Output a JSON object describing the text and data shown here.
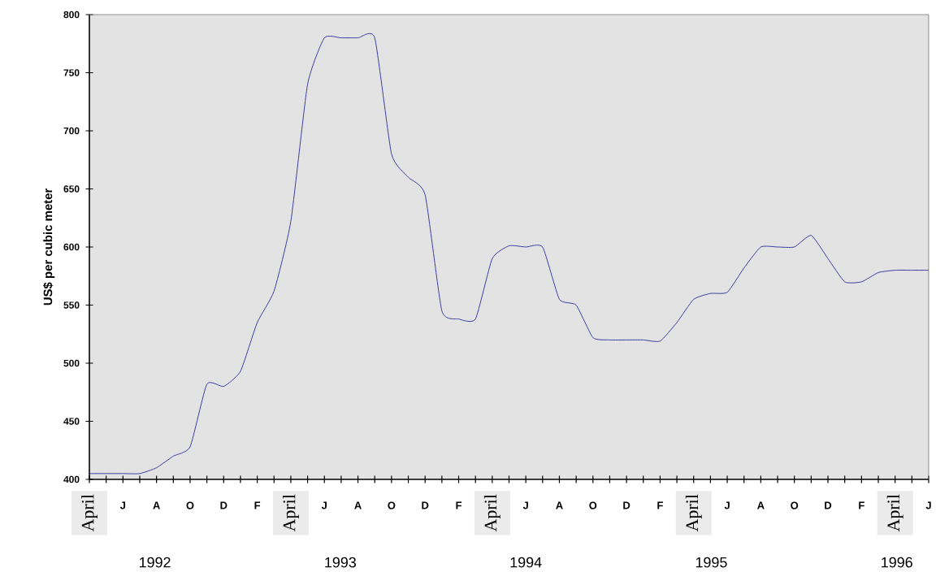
{
  "chart_data": {
    "type": "line",
    "ylabel": "US$ per cubic meter",
    "categories": [
      "April",
      null,
      "J",
      null,
      "A",
      null,
      "O",
      null,
      "D",
      null,
      "F",
      null,
      "April",
      null,
      "J",
      null,
      "A",
      null,
      "O",
      null,
      "D",
      null,
      "F",
      null,
      "April",
      null,
      "J",
      null,
      "A",
      null,
      "O",
      null,
      "D",
      null,
      "F",
      null,
      "April",
      null,
      "J",
      null,
      "A",
      null,
      "O",
      null,
      "D",
      null,
      "F",
      null,
      "April",
      null,
      "J"
    ],
    "series": [
      {
        "color": "#2b2b9a",
        "values": [
          405,
          405,
          405,
          405,
          410,
          420,
          428,
          482,
          480,
          493,
          535,
          562,
          622,
          740,
          780,
          780,
          780,
          780,
          680,
          660,
          645,
          545,
          538,
          538,
          590,
          601,
          600,
          600,
          555,
          550,
          522,
          520,
          520,
          520,
          519,
          535,
          555,
          560,
          561,
          582,
          600,
          600,
          600,
          610,
          590,
          570,
          570,
          578,
          580,
          580,
          580
        ]
      }
    ],
    "ylim": [
      400,
      800
    ],
    "yticks": [
      400,
      450,
      500,
      550,
      600,
      650,
      700,
      750,
      800
    ],
    "annotations": [
      "1992",
      "1993",
      "1994",
      "1995",
      "1996"
    ],
    "grid": false,
    "marker": "none",
    "line_style": "solid"
  }
}
